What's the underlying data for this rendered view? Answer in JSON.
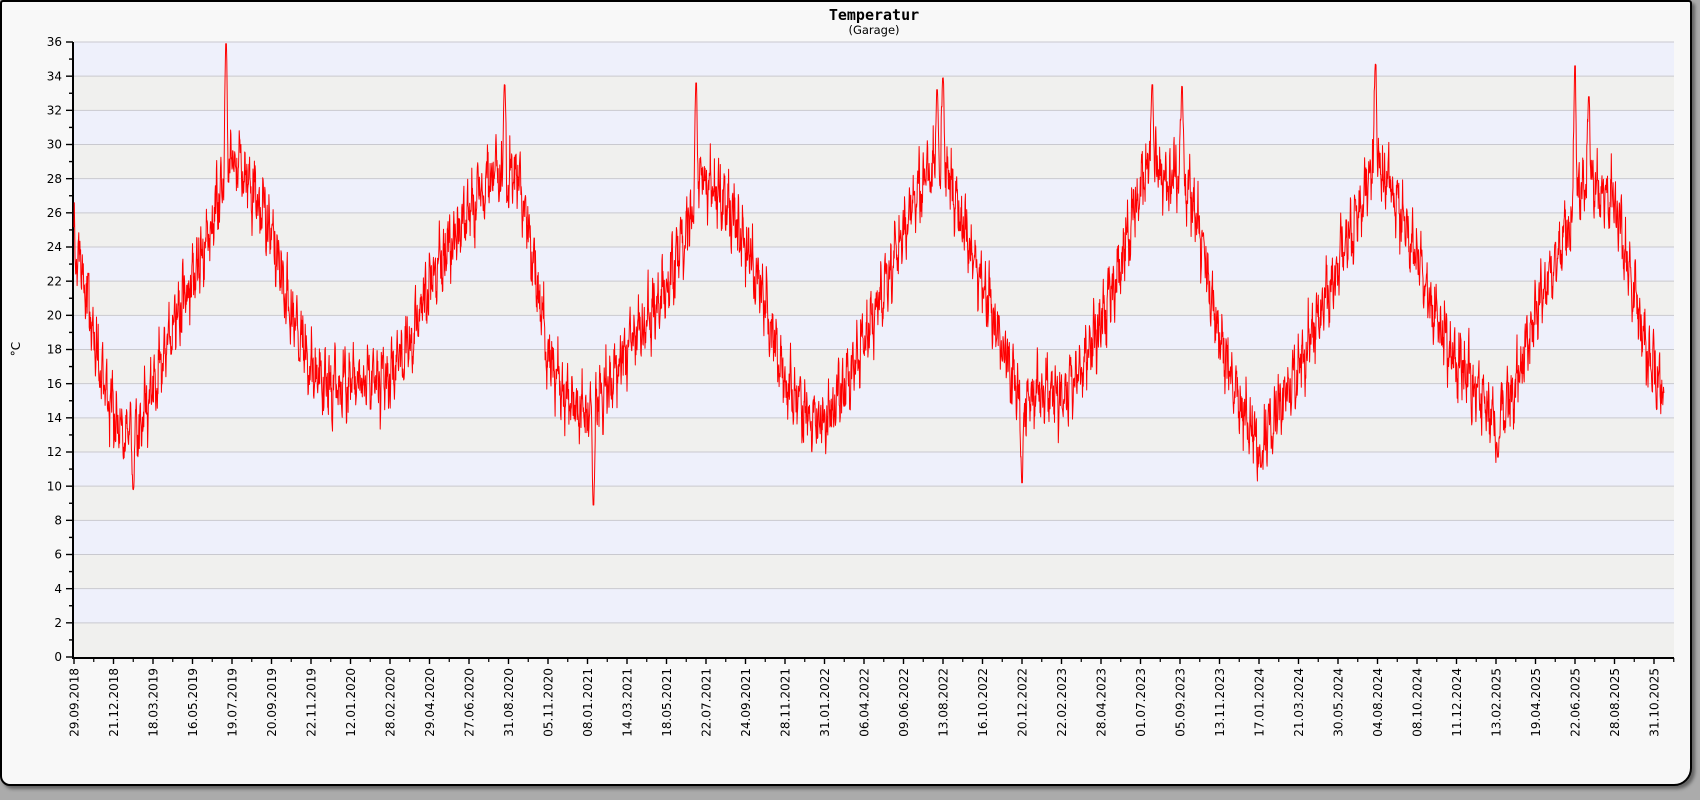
{
  "frame": {
    "outer_background": "#ababab",
    "background": "#f8f8f8",
    "border_color": "#000000"
  },
  "chart_data": {
    "type": "line",
    "title": "Temperatur",
    "subtitle": "(Garage)",
    "ylabel": "°C",
    "xlabel": "",
    "ylim": [
      0,
      36
    ],
    "y_ticks": [
      0,
      2,
      4,
      6,
      8,
      10,
      12,
      14,
      16,
      18,
      20,
      22,
      24,
      26,
      28,
      30,
      32,
      34,
      36
    ],
    "y_minor_step": 1,
    "grid": "horizontal-bands",
    "legend": "none",
    "series_name": "Temperatur Garage",
    "series_color": "#ff0000",
    "band_color_a": "#eef0fb",
    "band_color_b": "#f0f0ee",
    "grid_color": "#c9c9cf",
    "axis_color": "#000000",
    "x_tick_labels": [
      "29.09.2018",
      "21.12.2018",
      "18.03.2019",
      "16.05.2019",
      "19.07.2019",
      "20.09.2019",
      "22.11.2019",
      "12.01.2020",
      "28.02.2020",
      "29.04.2020",
      "27.06.2020",
      "31.08.2020",
      "05.11.2020",
      "08.01.2021",
      "14.03.2021",
      "18.05.2021",
      "22.07.2021",
      "24.09.2021",
      "28.11.2021",
      "31.01.2022",
      "06.04.2022",
      "09.06.2022",
      "13.08.2022",
      "16.10.2022",
      "20.12.2022",
      "22.02.2023",
      "28.04.2023",
      "01.07.2023",
      "05.09.2023",
      "13.11.2023",
      "17.01.2024",
      "21.03.2024",
      "30.05.2024",
      "04.08.2024",
      "08.10.2024",
      "11.12.2024",
      "13.02.2025",
      "19.04.2025",
      "22.06.2025",
      "28.08.2025",
      "31.10.2025"
    ],
    "trend_anchors_note": "i = x position in tick-index units (0 = first tick, 40 = last tick); t = mean temperature in °C read from the plot",
    "trend_anchors": [
      {
        "i": 0,
        "t": 24.5
      },
      {
        "i": 0.3,
        "t": 21.5
      },
      {
        "i": 0.6,
        "t": 17.5
      },
      {
        "i": 1,
        "t": 14.2
      },
      {
        "i": 1.3,
        "t": 13.0
      },
      {
        "i": 1.6,
        "t": 13.2
      },
      {
        "i": 2,
        "t": 16.0
      },
      {
        "i": 2.5,
        "t": 19.5
      },
      {
        "i": 3,
        "t": 22.0
      },
      {
        "i": 3.5,
        "t": 25.5
      },
      {
        "i": 3.9,
        "t": 28.8
      },
      {
        "i": 4.2,
        "t": 28.6
      },
      {
        "i": 4.6,
        "t": 27.0
      },
      {
        "i": 5,
        "t": 25.0
      },
      {
        "i": 5.4,
        "t": 21.0
      },
      {
        "i": 6,
        "t": 16.8
      },
      {
        "i": 6.5,
        "t": 15.8
      },
      {
        "i": 7,
        "t": 16.2
      },
      {
        "i": 7.5,
        "t": 16.0
      },
      {
        "i": 8,
        "t": 16.4
      },
      {
        "i": 8.5,
        "t": 18.5
      },
      {
        "i": 9,
        "t": 21.5
      },
      {
        "i": 9.5,
        "t": 24.0
      },
      {
        "i": 10,
        "t": 26.0
      },
      {
        "i": 10.6,
        "t": 28.5
      },
      {
        "i": 11,
        "t": 28.0
      },
      {
        "i": 11.2,
        "t": 28.6
      },
      {
        "i": 11.6,
        "t": 23.5
      },
      {
        "i": 12,
        "t": 17.5
      },
      {
        "i": 12.5,
        "t": 15.0
      },
      {
        "i": 13,
        "t": 14.2
      },
      {
        "i": 13.4,
        "t": 15.5
      },
      {
        "i": 14,
        "t": 18.0
      },
      {
        "i": 14.5,
        "t": 19.8
      },
      {
        "i": 15,
        "t": 21.5
      },
      {
        "i": 15.5,
        "t": 25.0
      },
      {
        "i": 15.8,
        "t": 28.0
      },
      {
        "i": 16.1,
        "t": 27.6
      },
      {
        "i": 16.5,
        "t": 26.5
      },
      {
        "i": 17,
        "t": 24.2
      },
      {
        "i": 17.4,
        "t": 21.5
      },
      {
        "i": 18,
        "t": 16.0
      },
      {
        "i": 18.5,
        "t": 14.2
      },
      {
        "i": 19,
        "t": 13.8
      },
      {
        "i": 19.5,
        "t": 15.8
      },
      {
        "i": 20,
        "t": 18.5
      },
      {
        "i": 20.5,
        "t": 21.5
      },
      {
        "i": 21,
        "t": 25.0
      },
      {
        "i": 21.5,
        "t": 27.8
      },
      {
        "i": 22,
        "t": 29.3
      },
      {
        "i": 22.3,
        "t": 27.0
      },
      {
        "i": 22.6,
        "t": 24.5
      },
      {
        "i": 23,
        "t": 21.8
      },
      {
        "i": 23.5,
        "t": 18.0
      },
      {
        "i": 24,
        "t": 14.8
      },
      {
        "i": 24.4,
        "t": 15.8
      },
      {
        "i": 25,
        "t": 15.2
      },
      {
        "i": 25.5,
        "t": 16.8
      },
      {
        "i": 26,
        "t": 19.5
      },
      {
        "i": 26.5,
        "t": 23.0
      },
      {
        "i": 27,
        "t": 27.5
      },
      {
        "i": 27.3,
        "t": 29.3
      },
      {
        "i": 27.7,
        "t": 27.5
      },
      {
        "i": 28,
        "t": 28.8
      },
      {
        "i": 28.4,
        "t": 26.0
      },
      {
        "i": 29,
        "t": 18.5
      },
      {
        "i": 29.5,
        "t": 14.8
      },
      {
        "i": 30,
        "t": 12.6
      },
      {
        "i": 30.4,
        "t": 14.0
      },
      {
        "i": 31,
        "t": 17.0
      },
      {
        "i": 31.5,
        "t": 19.8
      },
      {
        "i": 32,
        "t": 23.0
      },
      {
        "i": 32.5,
        "t": 26.0
      },
      {
        "i": 32.9,
        "t": 29.0
      },
      {
        "i": 33,
        "t": 28.8
      },
      {
        "i": 33.4,
        "t": 27.2
      },
      {
        "i": 34,
        "t": 23.2
      },
      {
        "i": 34.5,
        "t": 19.8
      },
      {
        "i": 35,
        "t": 17.2
      },
      {
        "i": 35.5,
        "t": 15.8
      },
      {
        "i": 36,
        "t": 13.8
      },
      {
        "i": 36.5,
        "t": 15.8
      },
      {
        "i": 37,
        "t": 20.0
      },
      {
        "i": 37.5,
        "t": 23.2
      },
      {
        "i": 38,
        "t": 26.3
      },
      {
        "i": 38.3,
        "t": 28.0
      },
      {
        "i": 38.7,
        "t": 27.2
      },
      {
        "i": 39,
        "t": 26.5
      },
      {
        "i": 39.4,
        "t": 22.5
      },
      {
        "i": 39.8,
        "t": 18.0
      },
      {
        "i": 40.25,
        "t": 15.2
      }
    ],
    "extremes": [
      {
        "i": 1.5,
        "t": 9.8
      },
      {
        "i": 3.85,
        "t": 35.9
      },
      {
        "i": 10.9,
        "t": 33.5
      },
      {
        "i": 13.15,
        "t": 8.9
      },
      {
        "i": 15.75,
        "t": 33.6
      },
      {
        "i": 21.85,
        "t": 33.2
      },
      {
        "i": 22.0,
        "t": 33.9
      },
      {
        "i": 24.0,
        "t": 10.2
      },
      {
        "i": 27.3,
        "t": 33.5
      },
      {
        "i": 28.05,
        "t": 33.4
      },
      {
        "i": 30.05,
        "t": 11.1
      },
      {
        "i": 32.95,
        "t": 34.7
      },
      {
        "i": 36.05,
        "t": 11.7
      },
      {
        "i": 38.0,
        "t": 34.6
      },
      {
        "i": 38.35,
        "t": 32.8
      }
    ],
    "noise": {
      "daily_jitter": 1.05,
      "wander_amplitude": 2.0
    }
  }
}
